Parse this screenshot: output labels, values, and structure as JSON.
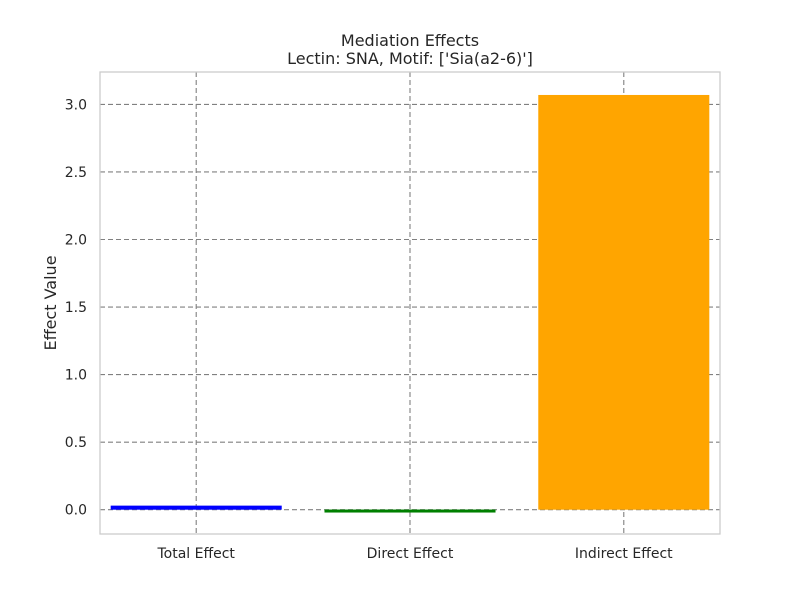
{
  "chart_data": {
    "type": "bar",
    "title": "Mediation Effects",
    "subtitle": "Lectin: SNA, Motif: ['Sia(a2-6)']",
    "xlabel": "",
    "ylabel": "Effect Value",
    "categories": [
      "Total Effect",
      "Direct Effect",
      "Indirect Effect"
    ],
    "values": [
      0.03,
      -0.02,
      3.07
    ],
    "colors": [
      "#0000ff",
      "#008000",
      "#ffa500"
    ],
    "ylim": [
      -0.18,
      3.24
    ],
    "yticks": [
      0.0,
      0.5,
      1.0,
      1.5,
      2.0,
      2.5,
      3.0
    ],
    "ytick_labels": [
      "0.0",
      "0.5",
      "1.0",
      "1.5",
      "2.0",
      "2.5",
      "3.0"
    ],
    "grid": true,
    "legend": "none"
  }
}
